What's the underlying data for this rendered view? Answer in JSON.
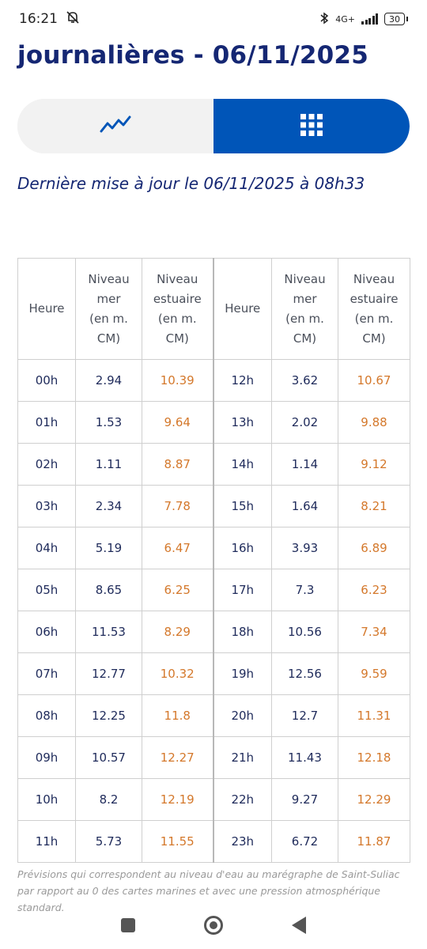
{
  "status_bar": {
    "time": "16:21",
    "network": "4G+",
    "battery": "30"
  },
  "page": {
    "title": "journalières - 06/11/2025",
    "last_update": "Dernière mise à jour le 06/11/2025 à 08h33",
    "view_toggle": {
      "chart_icon": "line-chart-icon",
      "table_icon": "grid-icon",
      "active": "table"
    }
  },
  "table": {
    "headers": [
      "Heure",
      "Niveau mer (en m. CM)",
      "Niveau estuaire (en m. CM)",
      "Heure",
      "Niveau mer (en m. CM)",
      "Niveau estuaire (en m. CM)"
    ],
    "rows": [
      [
        "00h",
        "2.94",
        "10.39",
        "12h",
        "3.62",
        "10.67"
      ],
      [
        "01h",
        "1.53",
        "9.64",
        "13h",
        "2.02",
        "9.88"
      ],
      [
        "02h",
        "1.11",
        "8.87",
        "14h",
        "1.14",
        "9.12"
      ],
      [
        "03h",
        "2.34",
        "7.78",
        "15h",
        "1.64",
        "8.21"
      ],
      [
        "04h",
        "5.19",
        "6.47",
        "16h",
        "3.93",
        "6.89"
      ],
      [
        "05h",
        "8.65",
        "6.25",
        "17h",
        "7.3",
        "6.23"
      ],
      [
        "06h",
        "11.53",
        "8.29",
        "18h",
        "10.56",
        "7.34"
      ],
      [
        "07h",
        "12.77",
        "10.32",
        "19h",
        "12.56",
        "9.59"
      ],
      [
        "08h",
        "12.25",
        "11.8",
        "20h",
        "12.7",
        "11.31"
      ],
      [
        "09h",
        "10.57",
        "12.27",
        "21h",
        "11.43",
        "12.18"
      ],
      [
        "10h",
        "8.2",
        "12.19",
        "22h",
        "9.27",
        "12.29"
      ],
      [
        "11h",
        "5.73",
        "11.55",
        "23h",
        "6.72",
        "11.87"
      ]
    ]
  },
  "footnote": "Prévisions qui correspondent au niveau d'eau au marégraphe de Saint-Suliac par rapport au 0 des cartes marines et avec une pression atmosphérique standard.",
  "colors": {
    "accent": "#0055b8",
    "title": "#152773",
    "estuaire": "#d4782b"
  }
}
